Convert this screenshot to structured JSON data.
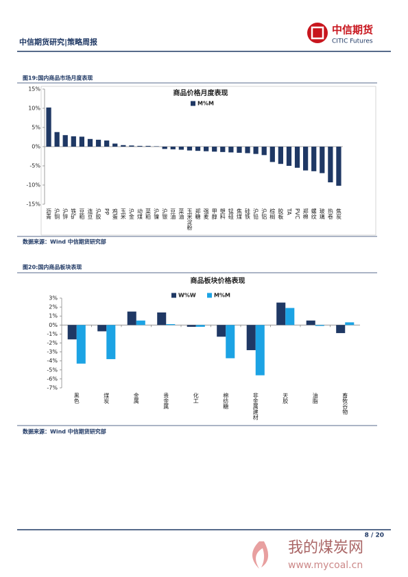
{
  "header": {
    "title": "中信期货研究|策略周报",
    "logo_cn": "中信期货",
    "logo_en": "CITIC Futures"
  },
  "figures": [
    {
      "caption": "图19:国内商品市场月度表现",
      "source": "数据来源：Wind  中信期货研究部"
    },
    {
      "caption": "图20:国内商品板块表现",
      "source": "数据来源：Wind  中信期货研究部"
    }
  ],
  "chart_data": [
    {
      "type": "bar",
      "title": "商品价格月度表现",
      "categories": [
        "沥青",
        "沪铜",
        "沪锌",
        "铁矿",
        "豆粕",
        "连豆",
        "沪胶",
        "PP",
        "鸡蛋",
        "玉米",
        "沪金",
        "动煤",
        "菜粕",
        "沪镍",
        "沪银",
        "豆油",
        "菜油",
        "玉米淀粉",
        "郑糖",
        "强麦",
        "甲醇",
        "塑料",
        "锰硅",
        "焦煤",
        "硅铁",
        "沪铅",
        "沪铝",
        "棕榈",
        "胶板",
        "TA",
        "PVC",
        "郑棉",
        "螺纹",
        "玻璃",
        "热卷",
        "焦炭"
      ],
      "series": [
        {
          "name": "M%M",
          "color": "#1f3864",
          "values": [
            10.2,
            3.8,
            3.0,
            2.7,
            2.6,
            2.0,
            1.8,
            1.6,
            0.8,
            0.4,
            0.3,
            0.2,
            0.2,
            0.1,
            -0.6,
            -0.7,
            -0.8,
            -1.0,
            -1.1,
            -1.2,
            -1.3,
            -1.4,
            -1.5,
            -1.6,
            -1.7,
            -1.9,
            -2.2,
            -4.0,
            -4.5,
            -5.0,
            -5.5,
            -6.2,
            -6.4,
            -6.9,
            -9.3,
            -10.2
          ]
        }
      ],
      "ylim": [
        -15,
        15
      ],
      "yticks": [
        {
          "value": -15,
          "label": "-15%"
        },
        {
          "value": -10,
          "label": "-10%"
        },
        {
          "value": -5,
          "label": "-5%"
        },
        {
          "value": 0,
          "label": "0%"
        },
        {
          "value": 5,
          "label": "5%"
        },
        {
          "value": 10,
          "label": "10%"
        },
        {
          "value": 15,
          "label": "15%"
        }
      ]
    },
    {
      "type": "bar",
      "title": "商品板块价格表现",
      "categories": [
        "黑色",
        "煤炭",
        "金属",
        "贵金属",
        "化工",
        "棉纺糖",
        "非金属建材",
        "天胶",
        "油脂",
        "畜牧谷物"
      ],
      "series": [
        {
          "name": "W%W",
          "color": "#1f3864",
          "values": [
            -1.6,
            -0.7,
            1.5,
            1.4,
            -0.2,
            -1.3,
            -2.8,
            2.5,
            0.5,
            -0.9
          ]
        },
        {
          "name": "M%M",
          "color": "#1ca3e4",
          "values": [
            -4.3,
            -3.8,
            0.5,
            0.1,
            -0.2,
            -3.7,
            -5.6,
            1.9,
            -0.1,
            0.3
          ]
        }
      ],
      "ylim": [
        -7,
        3
      ],
      "yticks": [
        {
          "value": -7,
          "label": "-7%"
        },
        {
          "value": -6,
          "label": "-6%"
        },
        {
          "value": -5,
          "label": "-5%"
        },
        {
          "value": -4,
          "label": "-4%"
        },
        {
          "value": -3,
          "label": "-3%"
        },
        {
          "value": -2,
          "label": "-2%"
        },
        {
          "value": -1,
          "label": "-1%"
        },
        {
          "value": 0,
          "label": "0%"
        },
        {
          "value": 1,
          "label": "1%"
        },
        {
          "value": 2,
          "label": "2%"
        },
        {
          "value": 3,
          "label": "3%"
        }
      ]
    }
  ],
  "footer": {
    "page": "8 / 20"
  },
  "watermark": {
    "cn": "我的煤炭网",
    "url": "www.mycoal.cn"
  }
}
